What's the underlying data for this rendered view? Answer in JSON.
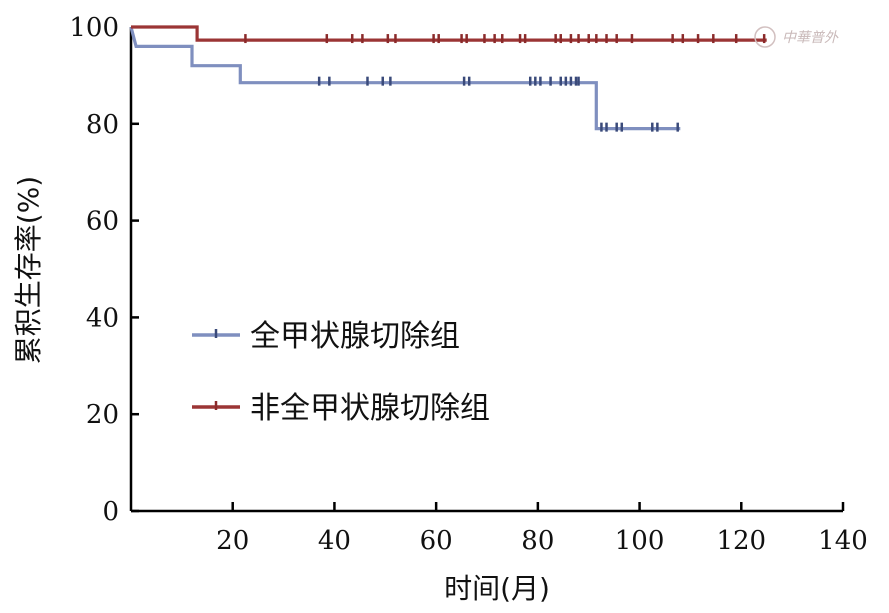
{
  "chart_data": {
    "type": "line",
    "xlabel": "时间(月)",
    "ylabel": "累积生存率(%)",
    "xlim": [
      0,
      140
    ],
    "ylim": [
      0,
      100
    ],
    "xticks": [
      20,
      40,
      60,
      80,
      100,
      120,
      140
    ],
    "yticks": [
      0,
      20,
      40,
      60,
      80,
      100
    ],
    "grid": false,
    "legend_position": "center-left",
    "series": [
      {
        "name": "全甲状腺切除组",
        "color": "#7f8fbf",
        "censor_color": "#3a4a7a",
        "steps": [
          [
            0,
            100
          ],
          [
            1,
            96
          ],
          [
            12,
            96
          ],
          [
            12,
            92
          ],
          [
            21.5,
            92
          ],
          [
            21.5,
            88.5
          ],
          [
            91.5,
            88.5
          ],
          [
            91.5,
            79
          ],
          [
            108,
            79
          ]
        ],
        "censored": [
          37,
          39,
          46.5,
          49.5,
          51,
          65.5,
          66.5,
          78.5,
          79.5,
          80.5,
          82.5,
          84.5,
          85.5,
          86.5,
          87.5,
          88,
          92.5,
          93.5,
          95.5,
          96.5,
          102.5,
          103.5,
          107.5
        ]
      },
      {
        "name": "非全甲状腺切除组",
        "color": "#9b3535",
        "censor_color": "#8b2a2a",
        "steps": [
          [
            0,
            100
          ],
          [
            13,
            100
          ],
          [
            13,
            97.3
          ],
          [
            125,
            97.3
          ]
        ],
        "censored": [
          22.5,
          38.5,
          43.5,
          45.5,
          50.5,
          52,
          59.5,
          60.5,
          65,
          66,
          69.5,
          71.5,
          73,
          76.5,
          77.5,
          83.5,
          84.5,
          86.5,
          88,
          90,
          91.5,
          93.5,
          95.5,
          98.5,
          106.5,
          108.5,
          111.5,
          114.5,
          119,
          124.5
        ]
      }
    ]
  },
  "watermark": "中華普外"
}
